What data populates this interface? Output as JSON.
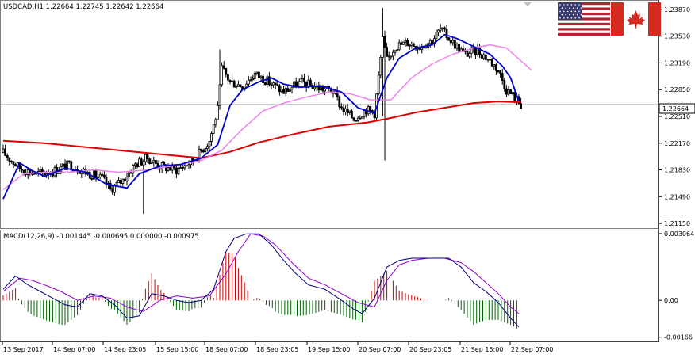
{
  "header": {
    "symbol_info": "USDCAD,H1  1.22664 1.22745 1.22642 1.22664",
    "macd_info": "MACD(12,26,9) -0.001445 -0.000695 0.000000 -0.000975"
  },
  "flags": [
    {
      "name": "usa-flag-icon",
      "stripes": [
        "#b22234",
        "#ffffff"
      ],
      "canton": "#3c3b6e"
    },
    {
      "name": "canada-flag-icon",
      "colors": [
        "#d52b1e",
        "#ffffff"
      ]
    }
  ],
  "colors": {
    "candle": "#000000",
    "fast_ma": "#0000cc",
    "slow_ma": "#ee82ee",
    "long_ma": "#dd0000",
    "macd_line": "#000080",
    "signal_line": "#9400d3",
    "hist_pos": "#cc0000",
    "hist_neg": "#006400",
    "current_price_box": "#ffffff",
    "grid": "#c0c0c0"
  },
  "chart_data": [
    {
      "type": "candlestick",
      "title": "USDCAD,H1",
      "y_ticks": [
        "1.23870",
        "1.23530",
        "1.23190",
        "1.22850",
        "1.22510",
        "1.22170",
        "1.21830",
        "1.21490",
        "1.21150"
      ],
      "ylim": [
        1.2109,
        1.2397
      ],
      "current_price": "1.22664",
      "x_ticks": [
        "13 Sep 2017",
        "14 Sep 07:00",
        "14 Sep 23:05",
        "15 Sep 15:00",
        "18 Sep 07:00",
        "18 Sep 23:05",
        "19 Sep 15:00",
        "20 Sep 07:00",
        "20 Sep 23:05",
        "21 Sep 15:00",
        "22 Sep 07:00"
      ],
      "close_path": [
        [
          0,
          1.2205
        ],
        [
          8,
          1.2185
        ],
        [
          16,
          1.2178
        ],
        [
          24,
          1.2181
        ],
        [
          32,
          1.219
        ],
        [
          40,
          1.218
        ],
        [
          48,
          1.2172
        ],
        [
          52,
          1.2158
        ],
        [
          58,
          1.217
        ],
        [
          64,
          1.219
        ],
        [
          70,
          1.2198
        ],
        [
          76,
          1.2188
        ],
        [
          84,
          1.2183
        ],
        [
          92,
          1.2195
        ],
        [
          100,
          1.222
        ],
        [
          104,
          1.226
        ],
        [
          106,
          1.2312
        ],
        [
          110,
          1.2295
        ],
        [
          116,
          1.229
        ],
        [
          122,
          1.2305
        ],
        [
          128,
          1.2296
        ],
        [
          136,
          1.2282
        ],
        [
          144,
          1.2295
        ],
        [
          152,
          1.2288
        ],
        [
          160,
          1.2283
        ],
        [
          164,
          1.2262
        ],
        [
          170,
          1.2248
        ],
        [
          176,
          1.226
        ],
        [
          180,
          1.2255
        ],
        [
          184,
          1.2348
        ],
        [
          186,
          1.2322
        ],
        [
          190,
          1.234
        ],
        [
          196,
          1.2345
        ],
        [
          202,
          1.234
        ],
        [
          208,
          1.2348
        ],
        [
          212,
          1.2362
        ],
        [
          218,
          1.2345
        ],
        [
          224,
          1.233
        ],
        [
          230,
          1.2335
        ],
        [
          236,
          1.2322
        ],
        [
          240,
          1.231
        ],
        [
          244,
          1.2285
        ],
        [
          248,
          1.2275
        ],
        [
          251,
          1.2266
        ]
      ],
      "fast_ma": [
        [
          0,
          1.2146
        ],
        [
          8,
          1.2192
        ],
        [
          14,
          1.2182
        ],
        [
          20,
          1.2175
        ],
        [
          30,
          1.2185
        ],
        [
          40,
          1.218
        ],
        [
          50,
          1.2165
        ],
        [
          60,
          1.216
        ],
        [
          66,
          1.2178
        ],
        [
          76,
          1.2188
        ],
        [
          86,
          1.219
        ],
        [
          96,
          1.2198
        ],
        [
          104,
          1.2215
        ],
        [
          110,
          1.2265
        ],
        [
          116,
          1.2285
        ],
        [
          124,
          1.2295
        ],
        [
          130,
          1.23
        ],
        [
          136,
          1.2292
        ],
        [
          144,
          1.2288
        ],
        [
          154,
          1.229
        ],
        [
          164,
          1.2282
        ],
        [
          172,
          1.2262
        ],
        [
          180,
          1.2255
        ],
        [
          186,
          1.23
        ],
        [
          192,
          1.2325
        ],
        [
          200,
          1.2338
        ],
        [
          208,
          1.2342
        ],
        [
          214,
          1.2355
        ],
        [
          220,
          1.235
        ],
        [
          228,
          1.234
        ],
        [
          236,
          1.233
        ],
        [
          242,
          1.2315
        ],
        [
          246,
          1.23
        ],
        [
          250,
          1.227
        ]
      ],
      "slow_ma": [
        [
          0,
          1.2158
        ],
        [
          10,
          1.2178
        ],
        [
          20,
          1.218
        ],
        [
          32,
          1.218
        ],
        [
          44,
          1.2183
        ],
        [
          56,
          1.218
        ],
        [
          70,
          1.2183
        ],
        [
          82,
          1.2188
        ],
        [
          96,
          1.2195
        ],
        [
          106,
          1.2208
        ],
        [
          116,
          1.2235
        ],
        [
          126,
          1.2258
        ],
        [
          136,
          1.2268
        ],
        [
          146,
          1.2275
        ],
        [
          158,
          1.2282
        ],
        [
          168,
          1.228
        ],
        [
          178,
          1.2272
        ],
        [
          188,
          1.2272
        ],
        [
          198,
          1.23
        ],
        [
          208,
          1.2318
        ],
        [
          218,
          1.233
        ],
        [
          228,
          1.2338
        ],
        [
          236,
          1.2342
        ],
        [
          244,
          1.2338
        ],
        [
          256,
          1.231
        ]
      ],
      "long_ma": [
        [
          0,
          1.222
        ],
        [
          20,
          1.2217
        ],
        [
          40,
          1.2212
        ],
        [
          60,
          1.2207
        ],
        [
          80,
          1.2202
        ],
        [
          96,
          1.2198
        ],
        [
          110,
          1.2206
        ],
        [
          124,
          1.2218
        ],
        [
          140,
          1.2228
        ],
        [
          158,
          1.2238
        ],
        [
          176,
          1.2243
        ],
        [
          186,
          1.2248
        ],
        [
          200,
          1.2256
        ],
        [
          214,
          1.2262
        ],
        [
          228,
          1.2268
        ],
        [
          240,
          1.227
        ],
        [
          251,
          1.2269
        ]
      ]
    },
    {
      "type": "line",
      "title": "MACD(12,26,9)",
      "y_ticks": [
        "0.003064",
        "0.00",
        "-0.00166"
      ],
      "ylim": [
        -0.00185,
        0.00315
      ],
      "macd_line": [
        [
          0,
          0.0005
        ],
        [
          6,
          0.0011
        ],
        [
          12,
          0.0007
        ],
        [
          18,
          0.0004
        ],
        [
          24,
          0.0001
        ],
        [
          30,
          -0.0002
        ],
        [
          36,
          -0.0003
        ],
        [
          42,
          0.0003
        ],
        [
          48,
          0.0002
        ],
        [
          54,
          -0.0002
        ],
        [
          60,
          -0.0008
        ],
        [
          66,
          -0.0007
        ],
        [
          72,
          0.0003
        ],
        [
          78,
          0.0002
        ],
        [
          84,
          0.0
        ],
        [
          90,
          -0.0001
        ],
        [
          96,
          0.0
        ],
        [
          102,
          0.0005
        ],
        [
          108,
          0.0022
        ],
        [
          112,
          0.0028
        ],
        [
          118,
          0.003
        ],
        [
          124,
          0.003
        ],
        [
          130,
          0.0025
        ],
        [
          136,
          0.0018
        ],
        [
          142,
          0.0012
        ],
        [
          148,
          0.0007
        ],
        [
          156,
          0.0005
        ],
        [
          164,
          0.0
        ],
        [
          170,
          -0.0004
        ],
        [
          174,
          -0.0006
        ],
        [
          180,
          0.0001
        ],
        [
          186,
          0.0015
        ],
        [
          192,
          0.0018
        ],
        [
          198,
          0.0019
        ],
        [
          204,
          0.0019
        ],
        [
          210,
          0.0019
        ],
        [
          216,
          0.0019
        ],
        [
          222,
          0.0015
        ],
        [
          228,
          0.0008
        ],
        [
          234,
          0.0004
        ],
        [
          240,
          -0.0001
        ],
        [
          246,
          -0.0008
        ],
        [
          250,
          -0.0012
        ]
      ],
      "signal_line": [
        [
          0,
          0.0004
        ],
        [
          8,
          0.001
        ],
        [
          14,
          0.0009
        ],
        [
          20,
          0.0007
        ],
        [
          28,
          0.0004
        ],
        [
          36,
          0.0
        ],
        [
          44,
          0.0002
        ],
        [
          52,
          0.0001
        ],
        [
          60,
          -0.0003
        ],
        [
          68,
          -0.0005
        ],
        [
          76,
          0.0
        ],
        [
          84,
          0.0002
        ],
        [
          92,
          0.0001
        ],
        [
          100,
          0.0002
        ],
        [
          108,
          0.0012
        ],
        [
          114,
          0.0022
        ],
        [
          120,
          0.003
        ],
        [
          126,
          0.0029
        ],
        [
          132,
          0.0025
        ],
        [
          140,
          0.0017
        ],
        [
          148,
          0.001
        ],
        [
          156,
          0.0007
        ],
        [
          164,
          0.0003
        ],
        [
          172,
          -0.0001
        ],
        [
          180,
          -0.0003
        ],
        [
          186,
          0.0009
        ],
        [
          192,
          0.0016
        ],
        [
          198,
          0.0018
        ],
        [
          206,
          0.0019
        ],
        [
          214,
          0.0019
        ],
        [
          222,
          0.0017
        ],
        [
          228,
          0.0013
        ],
        [
          234,
          0.0008
        ],
        [
          240,
          0.0003
        ],
        [
          246,
          -0.0003
        ],
        [
          250,
          -0.0006
        ]
      ]
    }
  ]
}
